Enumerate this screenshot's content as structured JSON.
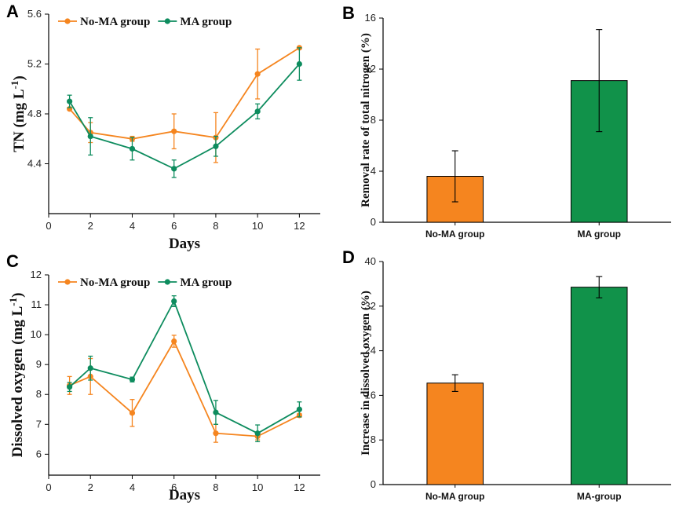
{
  "colors": {
    "no_ma": "#F5851F",
    "ma": "#0D8C5E",
    "bar_ma": "#11924A",
    "bar_edge": "#000000",
    "axis": "#000000"
  },
  "chart_data": [
    {
      "id": "A",
      "panel_label": "A",
      "type": "line",
      "xlabel": "Days",
      "ylabel": "TN (mg L-1)",
      "ylabel_main": "TN (mg L",
      "ylabel_sup": "-1",
      "ylabel_close": ")",
      "xlim": [
        0,
        13
      ],
      "ylim": [
        4.0,
        5.6
      ],
      "xticks": [
        0,
        2,
        4,
        6,
        8,
        10,
        12
      ],
      "yticks": [
        4.4,
        4.8,
        5.2,
        5.6
      ],
      "ytick_labels": [
        "4.4",
        "4.8",
        "5.2",
        "5.6"
      ],
      "legend_position": "top-left",
      "series": [
        {
          "name": "No-MA group",
          "color_key": "no_ma",
          "x": [
            1,
            2,
            4,
            6,
            8,
            10,
            12
          ],
          "y": [
            4.84,
            4.65,
            4.6,
            4.66,
            4.61,
            5.12,
            5.33
          ],
          "err": [
            0.01,
            0.08,
            0.02,
            0.14,
            0.2,
            0.2,
            0.01
          ]
        },
        {
          "name": "MA group",
          "color_key": "ma",
          "x": [
            1,
            2,
            4,
            6,
            8,
            10,
            12
          ],
          "y": [
            4.9,
            4.62,
            4.52,
            4.36,
            4.54,
            4.82,
            5.2
          ],
          "err": [
            0.05,
            0.15,
            0.09,
            0.07,
            0.08,
            0.06,
            0.13
          ]
        }
      ]
    },
    {
      "id": "B",
      "panel_label": "B",
      "type": "bar",
      "xlabel": "",
      "ylabel": "Removal rate of total nitrogen (%)",
      "ylim": [
        0,
        16
      ],
      "yticks": [
        0,
        4,
        8,
        12,
        16
      ],
      "ytick_labels": [
        "0",
        "4",
        "8",
        "12",
        "16"
      ],
      "categories": [
        "No-MA group",
        "MA group"
      ],
      "values": [
        3.6,
        11.1
      ],
      "err": [
        2.0,
        4.0
      ],
      "bar_color_keys": [
        "no_ma",
        "bar_ma"
      ]
    },
    {
      "id": "C",
      "panel_label": "C",
      "type": "line",
      "xlabel": "Days",
      "ylabel": "Dissolved oxygen (mg L-1)",
      "ylabel_main": "Dissolved oxygen (mg L",
      "ylabel_sup": "-1",
      "ylabel_close": ")",
      "xlim": [
        0,
        13
      ],
      "ylim": [
        5.3,
        12
      ],
      "xticks": [
        0,
        2,
        4,
        6,
        8,
        10,
        12
      ],
      "yticks": [
        6,
        7,
        8,
        9,
        10,
        11,
        12
      ],
      "ytick_labels": [
        "6",
        "7",
        "8",
        "9",
        "10",
        "11",
        "12"
      ],
      "legend_position": "top-left",
      "series": [
        {
          "name": "No-MA group",
          "color_key": "no_ma",
          "x": [
            1,
            2,
            4,
            6,
            8,
            10,
            12
          ],
          "y": [
            8.3,
            8.6,
            7.38,
            9.78,
            6.7,
            6.6,
            7.3
          ],
          "err": [
            0.3,
            0.6,
            0.45,
            0.2,
            0.3,
            0.12,
            0.06
          ]
        },
        {
          "name": "MA group",
          "color_key": "ma",
          "x": [
            1,
            2,
            4,
            6,
            8,
            10,
            12
          ],
          "y": [
            8.25,
            8.88,
            8.5,
            11.12,
            7.4,
            6.7,
            7.5
          ],
          "err": [
            0.15,
            0.4,
            0.08,
            0.18,
            0.4,
            0.28,
            0.25
          ]
        }
      ]
    },
    {
      "id": "D",
      "panel_label": "D",
      "type": "bar",
      "xlabel": "",
      "ylabel": "Increase in dissolved oxygen (%)",
      "ylim": [
        0,
        40
      ],
      "yticks": [
        0,
        8,
        16,
        24,
        32,
        40
      ],
      "ytick_labels": [
        "0",
        "8",
        "16",
        "24",
        "32",
        "40"
      ],
      "categories": [
        "No-MA group",
        "MA-group"
      ],
      "values": [
        18.2,
        35.4
      ],
      "err": [
        1.5,
        1.9
      ],
      "bar_color_keys": [
        "no_ma",
        "bar_ma"
      ]
    }
  ]
}
